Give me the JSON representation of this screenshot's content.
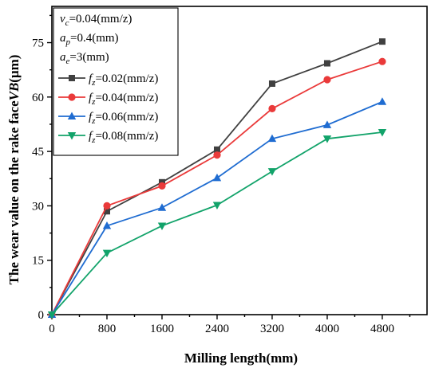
{
  "chart_data": {
    "type": "line",
    "xlabel": "Milling length(mm)",
    "ylabel_prefix": "The wear value on the rake face",
    "ylabel_var": "VB",
    "ylabel_unit": "(μm)",
    "x": [
      0,
      800,
      1600,
      2400,
      3200,
      4000,
      4800
    ],
    "x_ticks": [
      "0",
      "800",
      "1600",
      "2400",
      "3200",
      "4000",
      "4800"
    ],
    "y_ticks": [
      "0",
      "15",
      "30",
      "45",
      "60",
      "75"
    ],
    "xlim": [
      0,
      5450
    ],
    "ylim": [
      0,
      85
    ],
    "legend_position": "top-left",
    "conditions": [
      {
        "var": "v",
        "sub": "c",
        "value": "=0.04(mm/z)"
      },
      {
        "var": "a",
        "sub": "p",
        "value": "=0.4(mm)"
      },
      {
        "var": "a",
        "sub": "e",
        "value": "=3(mm)"
      }
    ],
    "series": [
      {
        "var": "f",
        "sub": "z",
        "value": "=0.02(mm/z)",
        "color": "#404040",
        "marker": "square",
        "values": [
          0,
          28.5,
          36.5,
          45.5,
          63.7,
          69.3,
          75.3
        ]
      },
      {
        "var": "f",
        "sub": "z",
        "value": "=0.04(mm/z)",
        "color": "#ea3a3a",
        "marker": "circle",
        "values": [
          0,
          30.0,
          35.5,
          44.0,
          56.8,
          64.8,
          69.8
        ]
      },
      {
        "var": "f",
        "sub": "z",
        "value": "=0.06(mm/z)",
        "color": "#1f6cd1",
        "marker": "triangle-up",
        "values": [
          0,
          24.5,
          29.5,
          37.7,
          48.5,
          52.3,
          58.7
        ]
      },
      {
        "var": "f",
        "sub": "z",
        "value": "=0.08(mm/z)",
        "color": "#12a36a",
        "marker": "triangle-down",
        "values": [
          0,
          17.0,
          24.5,
          30.2,
          39.5,
          48.5,
          50.3
        ]
      }
    ]
  }
}
